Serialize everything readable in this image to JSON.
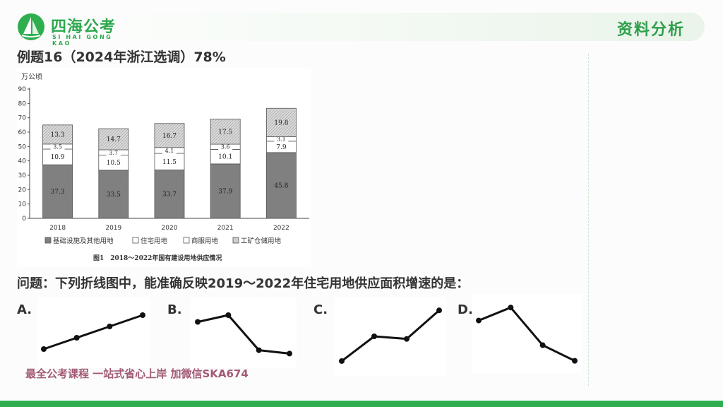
{
  "header": {
    "brand": "四海公考",
    "brand_sub": "SI HAI GONG KAO",
    "section_title": "资料分析"
  },
  "heading": "例题16（2024年浙江选调）78%",
  "question": "问题：下列折线图中，能准确反映2019～2022年住宅用地供应面积增速的是：",
  "watermark": "最全公考课程 一站式省心上岸 加微信SKA674",
  "colors": {
    "accent": "#2fae4f",
    "base_bar": "#808080",
    "commercial_bar": "#d9d9d9",
    "residential_bar": "#ffffff"
  },
  "chart_data": {
    "type": "bar",
    "stacked": true,
    "unit_label": "万公顷",
    "caption": "图1　2018～2022年国有建设用地供应情况",
    "categories": [
      "2018",
      "2019",
      "2020",
      "2021",
      "2022"
    ],
    "ylim": [
      0,
      90
    ],
    "yticks": [
      0,
      10,
      20,
      30,
      40,
      50,
      60,
      70,
      80,
      90
    ],
    "legend_position": "bottom",
    "series": [
      {
        "name": "基础设施及其他用地",
        "values": [
          37.3,
          33.5,
          33.7,
          37.9,
          45.8
        ],
        "labels": [
          "37.3",
          "33.5",
          "33.7",
          "37.9",
          "45.8"
        ]
      },
      {
        "name": "住宅用地",
        "values": [
          10.9,
          10.5,
          11.5,
          10.1,
          7.9
        ],
        "labels": [
          "10.9",
          "10.5",
          "11.5",
          "10.1",
          "7.9"
        ]
      },
      {
        "name": "商服用地",
        "values": [
          3.5,
          3.7,
          4.1,
          3.6,
          3.1
        ],
        "labels": [
          "3.5",
          "3.7",
          "4.1",
          "3.6",
          "3.1"
        ]
      },
      {
        "name": "工矿仓储用地",
        "values": [
          13.3,
          14.7,
          16.7,
          17.5,
          19.8
        ],
        "labels": [
          "13.3",
          "14.7",
          "16.7",
          "17.5",
          "19.8"
        ]
      }
    ]
  },
  "options": [
    {
      "label": "A.",
      "trend": [
        1,
        2,
        3,
        4
      ]
    },
    {
      "label": "B.",
      "trend": [
        3.4,
        4,
        0.9,
        0.6
      ]
    },
    {
      "label": "C.",
      "trend": [
        0.6,
        2.5,
        2.3,
        4.5
      ]
    },
    {
      "label": "D.",
      "trend": [
        3.5,
        4.5,
        1.6,
        0.4
      ]
    }
  ]
}
